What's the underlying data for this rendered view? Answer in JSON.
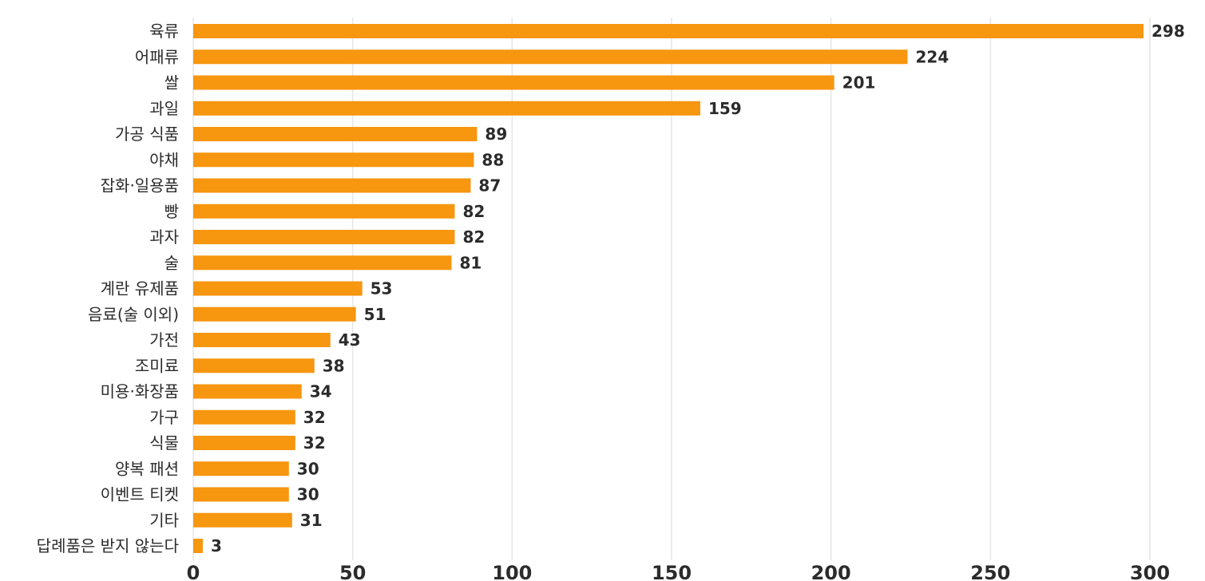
{
  "chart_data": {
    "type": "bar",
    "orientation": "horizontal",
    "categories": [
      "육류",
      "어패류",
      "쌀",
      "과일",
      "가공 식품",
      "야채",
      "잡화·일용품",
      "빵",
      "과자",
      "술",
      "계란 유제품",
      "음료(술 이외)",
      "가전",
      "조미료",
      "미용·화장품",
      "가구",
      "식물",
      "양복 패션",
      "이벤트 티켓",
      "기타",
      "답례품은 받지 않는다"
    ],
    "values": [
      298,
      224,
      201,
      159,
      89,
      88,
      87,
      82,
      82,
      81,
      53,
      51,
      43,
      38,
      34,
      32,
      32,
      30,
      30,
      31,
      3
    ],
    "xlim": [
      0,
      300
    ],
    "xticks": [
      0,
      50,
      100,
      150,
      200,
      250,
      300
    ],
    "grid": true,
    "legend": "none",
    "bar_color": "#f7960f"
  }
}
